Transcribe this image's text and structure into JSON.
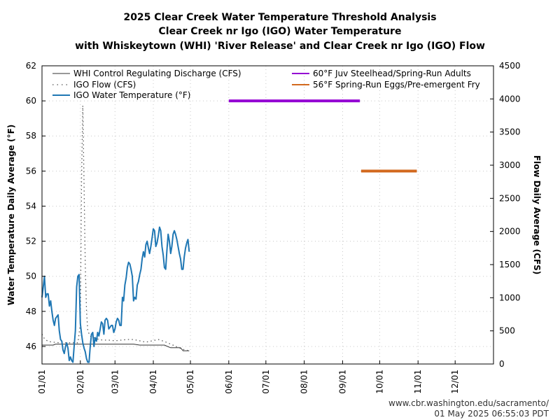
{
  "chart_data": {
    "type": "line",
    "title": [
      "2025 Clear Creek Water Temperature Threshold Analysis",
      "Clear Creek nr Igo (IGO) Water Temperature",
      "with Whiskeytown (WHI) 'River Release' and Clear Creek nr Igo (IGO) Flow"
    ],
    "ylabel": "Water Temperature Daily Average (°F)",
    "y2label": "Flow Daily Average (CFS)",
    "ylim": [
      45,
      62
    ],
    "yticks": [
      46,
      48,
      50,
      52,
      54,
      56,
      58,
      60,
      62
    ],
    "y2lim": [
      0,
      4500
    ],
    "y2ticks": [
      0,
      500,
      1000,
      1500,
      2000,
      2500,
      3000,
      3500,
      4000,
      4500
    ],
    "xlim_day_of_year": [
      1,
      366
    ],
    "xticks": [
      {
        "label": "01/01",
        "day": 1
      },
      {
        "label": "02/01",
        "day": 32
      },
      {
        "label": "03/01",
        "day": 60
      },
      {
        "label": "04/01",
        "day": 91
      },
      {
        "label": "05/01",
        "day": 121
      },
      {
        "label": "06/01",
        "day": 152
      },
      {
        "label": "07/01",
        "day": 182
      },
      {
        "label": "08/01",
        "day": 213
      },
      {
        "label": "09/01",
        "day": 244
      },
      {
        "label": "10/01",
        "day": 274
      },
      {
        "label": "11/01",
        "day": 305
      },
      {
        "label": "12/01",
        "day": 335
      }
    ],
    "grid": true,
    "legend_position": "top",
    "series": [
      {
        "name": "WHI Control Regulating Discharge (CFS)",
        "axis": "right",
        "style": "solid-thin",
        "color": "#333333",
        "x": [
          1,
          10,
          12,
          20,
          30,
          35,
          40,
          50,
          60,
          70,
          75,
          80,
          90,
          95,
          100,
          105,
          110,
          113,
          115,
          120
        ],
        "y": [
          285,
          285,
          300,
          300,
          300,
          300,
          300,
          300,
          300,
          300,
          300,
          285,
          285,
          285,
          285,
          245,
          245,
          245,
          200,
          200
        ]
      },
      {
        "name": "IGO Flow (CFS)",
        "axis": "right",
        "style": "dotted",
        "color": "#555555",
        "x": [
          1,
          3,
          6,
          10,
          15,
          20,
          25,
          30,
          32,
          33,
          34,
          35,
          36,
          37,
          38,
          40,
          45,
          50,
          55,
          60,
          65,
          70,
          75,
          80,
          85,
          90,
          95,
          100,
          105,
          110,
          115,
          120
        ],
        "y": [
          450,
          380,
          340,
          330,
          320,
          320,
          320,
          320,
          600,
          2800,
          3900,
          2700,
          1500,
          800,
          500,
          420,
          380,
          360,
          360,
          350,
          360,
          370,
          370,
          350,
          330,
          350,
          370,
          340,
          300,
          260,
          220,
          200
        ]
      },
      {
        "name": "IGO Water Temperature (°F)",
        "axis": "left",
        "style": "solid",
        "color": "#1f77b4",
        "x": [
          1,
          2,
          3,
          4,
          5,
          6,
          7,
          8,
          9,
          10,
          11,
          12,
          13,
          14,
          15,
          16,
          17,
          18,
          19,
          20,
          21,
          22,
          23,
          24,
          25,
          26,
          27,
          28,
          29,
          30,
          31,
          32,
          33,
          34,
          35,
          36,
          37,
          38,
          39,
          40,
          41,
          42,
          43,
          44,
          45,
          46,
          47,
          48,
          49,
          50,
          51,
          52,
          53,
          54,
          55,
          56,
          57,
          58,
          59,
          60,
          61,
          62,
          63,
          64,
          65,
          66,
          67,
          68,
          69,
          70,
          71,
          72,
          73,
          74,
          75,
          76,
          77,
          78,
          79,
          80,
          81,
          82,
          83,
          84,
          85,
          86,
          87,
          88,
          89,
          90,
          91,
          92,
          93,
          94,
          95,
          96,
          97,
          98,
          99,
          100,
          101,
          102,
          103,
          104,
          105,
          106,
          107,
          108,
          109,
          110,
          111,
          112,
          113,
          114,
          115,
          116,
          117,
          118,
          119,
          120
        ],
        "y": [
          48.8,
          49.4,
          50.0,
          48.8,
          49.0,
          49.0,
          48.3,
          48.6,
          48.0,
          47.5,
          47.2,
          47.6,
          47.7,
          47.8,
          46.9,
          46.4,
          46.3,
          45.8,
          45.6,
          46.0,
          46.2,
          45.9,
          45.2,
          45.4,
          45.2,
          45.1,
          46.0,
          46.9,
          49.4,
          50.0,
          50.1,
          47.3,
          46.7,
          46.2,
          45.9,
          45.7,
          45.3,
          45.1,
          45.1,
          46.0,
          46.7,
          46.8,
          46.0,
          46.5,
          46.3,
          46.8,
          46.6,
          47.0,
          47.4,
          47.3,
          46.7,
          47.5,
          47.6,
          47.5,
          47.0,
          47.1,
          47.2,
          47.2,
          46.8,
          47.0,
          47.4,
          47.6,
          47.5,
          47.2,
          47.2,
          48.8,
          48.6,
          49.5,
          49.9,
          50.5,
          50.8,
          50.7,
          50.4,
          50.0,
          48.6,
          48.8,
          48.7,
          49.5,
          49.7,
          50.1,
          50.4,
          51.0,
          51.4,
          51.1,
          51.8,
          52.0,
          51.6,
          51.3,
          51.7,
          52.2,
          52.7,
          52.6,
          51.7,
          51.9,
          52.3,
          52.8,
          52.6,
          51.7,
          51.2,
          50.5,
          50.4,
          51.5,
          52.4,
          52.0,
          51.3,
          51.7,
          52.4,
          52.6,
          52.4,
          52.1,
          51.7,
          51.3,
          51.0,
          50.4,
          50.4,
          51.1,
          51.6,
          51.9,
          52.1,
          51.4
        ]
      }
    ],
    "thresholds": [
      {
        "name": "60°F Juv Steelhead/Spring-Run Adults",
        "color": "#9400d3",
        "y": 60,
        "x_start": 152,
        "x_end": 258
      },
      {
        "name": "56°F Spring-Run Eggs/Pre-emergent Fry",
        "color": "#d2691e",
        "y": 56,
        "x_start": 259,
        "x_end": 304
      }
    ]
  },
  "footer": {
    "source": "www.cbr.washington.edu/sacramento/",
    "timestamp": "01 May 2025 06:55:03 PDT"
  }
}
